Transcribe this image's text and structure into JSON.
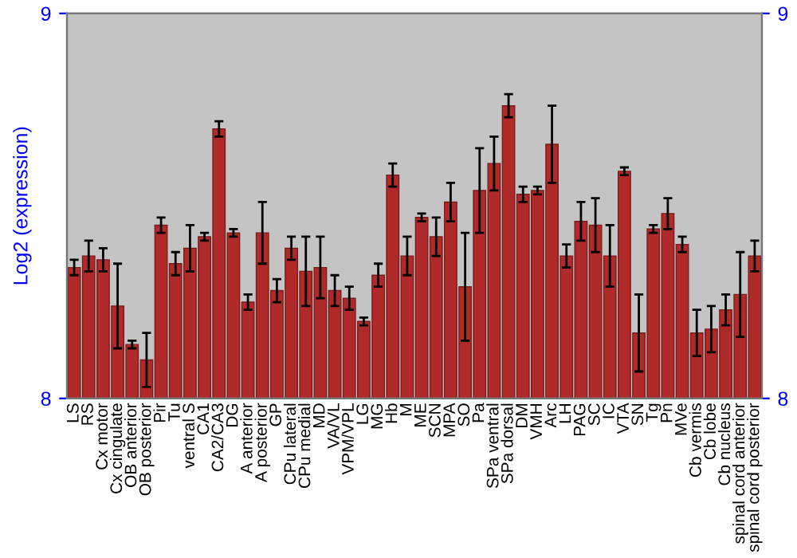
{
  "chart_data": {
    "type": "bar",
    "ylabel": "Log2 (expression)",
    "categories": [
      "LS",
      "RS",
      "Cx motor",
      "Cx cingulate",
      "OB anterior",
      "OB posterior",
      "Pir",
      "Tu",
      "ventral S",
      "CA1",
      "CA2/CA3",
      "DG",
      "A anterior",
      "A posterior",
      "GP",
      "CPu lateral",
      "CPu medial",
      "MD",
      "VA/VL",
      "VPM/VPL",
      "LG",
      "MG",
      "Hb",
      "M",
      "ME",
      "SCN",
      "MPA",
      "SO",
      "Pa",
      "SPa ventral",
      "SPa dorsal",
      "DM",
      "VMH",
      "Arc",
      "LH",
      "PAG",
      "SC",
      "IC",
      "VTA",
      "SN",
      "Tg",
      "Pn",
      "MVe",
      "Cb vermis",
      "Cb lobe",
      "Cb nucleus",
      "spinal cord anterior",
      "spinal cord posterior"
    ],
    "values": [
      8.34,
      8.37,
      8.36,
      8.24,
      8.14,
      8.1,
      8.45,
      8.35,
      8.39,
      8.42,
      8.7,
      8.43,
      8.25,
      8.43,
      8.28,
      8.39,
      8.33,
      8.34,
      8.28,
      8.26,
      8.2,
      8.32,
      8.58,
      8.37,
      8.47,
      8.42,
      8.51,
      8.29,
      8.54,
      8.61,
      8.76,
      8.53,
      8.54,
      8.66,
      8.37,
      8.46,
      8.45,
      8.37,
      8.59,
      8.17,
      8.44,
      8.48,
      8.4,
      8.17,
      8.18,
      8.23,
      8.27,
      8.37
    ],
    "errors": [
      0.02,
      0.04,
      0.03,
      0.11,
      0.01,
      0.07,
      0.02,
      0.03,
      0.06,
      0.01,
      0.02,
      0.01,
      0.02,
      0.08,
      0.03,
      0.03,
      0.09,
      0.08,
      0.04,
      0.03,
      0.01,
      0.03,
      0.03,
      0.05,
      0.01,
      0.05,
      0.05,
      0.14,
      0.11,
      0.07,
      0.03,
      0.02,
      0.01,
      0.1,
      0.03,
      0.05,
      0.07,
      0.08,
      0.01,
      0.1,
      0.01,
      0.04,
      0.02,
      0.06,
      0.06,
      0.04,
      0.11,
      0.04
    ],
    "color": "#b02a2a",
    "ylim": [
      8,
      9
    ],
    "yticks": [
      8,
      9
    ],
    "y2lim": [
      8,
      9
    ],
    "y2ticks": [
      8,
      9
    ],
    "grid": false
  }
}
